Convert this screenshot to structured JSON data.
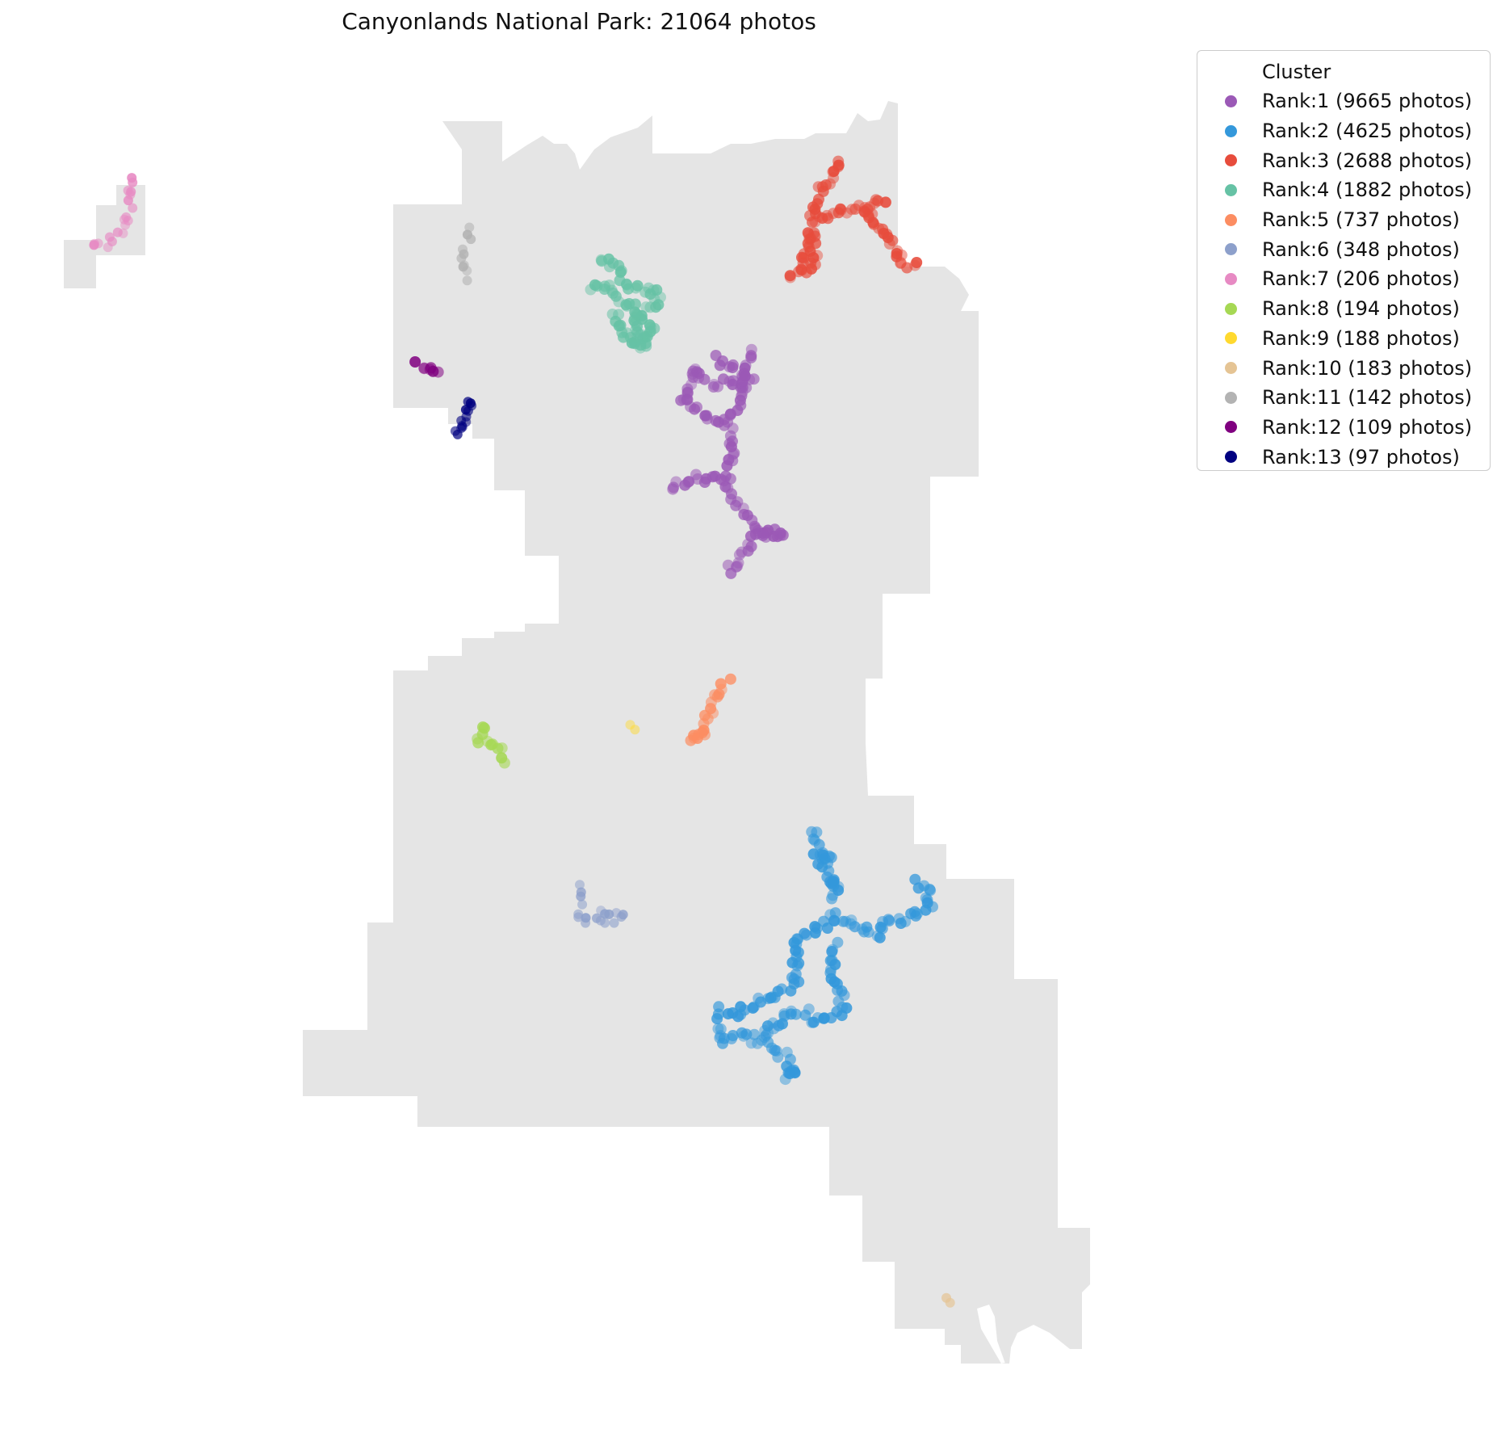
{
  "title": "Canyonlands National Park: 21064 photos",
  "legend": {
    "title": "Cluster",
    "placement": "upper-right-outside"
  },
  "map": {
    "park_fill": "#e5e5e5",
    "point_opacity": 0.45
  },
  "clusters": [
    {
      "label": "Rank:1 (9665 photos)",
      "color": "#9b59b6"
    },
    {
      "label": "Rank:2 (4625 photos)",
      "color": "#3498db"
    },
    {
      "label": "Rank:3 (2688 photos)",
      "color": "#e74c3c"
    },
    {
      "label": "Rank:4 (1882 photos)",
      "color": "#66c2a5"
    },
    {
      "label": "Rank:5 (737 photos)",
      "color": "#fc8d62"
    },
    {
      "label": "Rank:6 (348 photos)",
      "color": "#8da0cb"
    },
    {
      "label": "Rank:7 (206 photos)",
      "color": "#e78ac3"
    },
    {
      "label": "Rank:8 (194 photos)",
      "color": "#a6d854"
    },
    {
      "label": "Rank:9 (188 photos)",
      "color": "#ffd92f"
    },
    {
      "label": "Rank:10 (183 photos)",
      "color": "#e5c494"
    },
    {
      "label": "Rank:11 (142 photos)",
      "color": "#b3b3b3"
    },
    {
      "label": "Rank:12 (109 photos)",
      "color": "#800080"
    },
    {
      "label": "Rank:13 (97 photos)",
      "color": "#000080"
    }
  ]
}
